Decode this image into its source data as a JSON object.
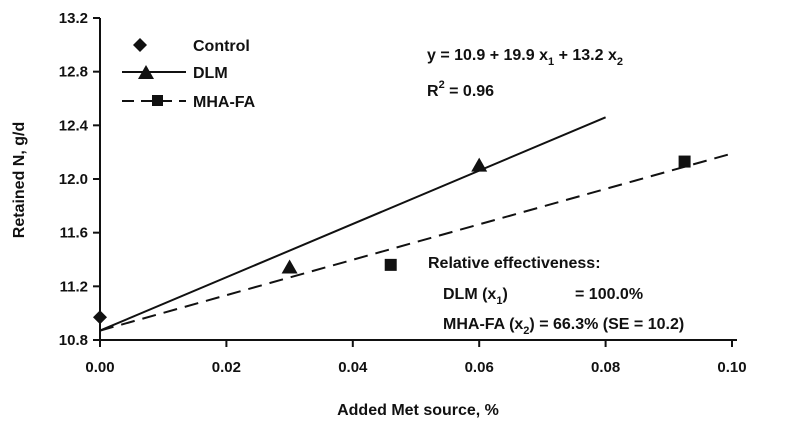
{
  "chart_data": {
    "type": "scatter",
    "xlabel": "Added Met source, %",
    "ylabel": "Retained N, g/d",
    "xlim": [
      0.0,
      0.1
    ],
    "ylim": [
      10.8,
      13.2
    ],
    "x_ticks": [
      "0.00",
      "0.02",
      "0.04",
      "0.06",
      "0.08",
      "0.10"
    ],
    "x_tick_values": [
      0.0,
      0.02,
      0.04,
      0.06,
      0.08,
      0.1
    ],
    "y_ticks": [
      "10.8",
      "11.2",
      "11.6",
      "12.0",
      "12.4",
      "12.8",
      "13.2"
    ],
    "y_tick_values": [
      10.8,
      11.2,
      11.6,
      12.0,
      12.4,
      12.8,
      13.2
    ],
    "grid": false,
    "legend_position": "top-left",
    "series": [
      {
        "name": "Control",
        "marker": "diamond",
        "line": "none",
        "points": [
          {
            "x": 0.0,
            "y": 10.97
          }
        ]
      },
      {
        "name": "DLM",
        "marker": "triangle",
        "line": "solid",
        "points": [
          {
            "x": 0.03,
            "y": 11.34
          },
          {
            "x": 0.06,
            "y": 12.1
          }
        ],
        "fit": {
          "x_start": 0.0,
          "y_start": 10.87,
          "x_end": 0.08,
          "y_end": 12.46
        }
      },
      {
        "name": "MHA-FA",
        "marker": "square",
        "line": "dashed",
        "points": [
          {
            "x": 0.046,
            "y": 11.36
          },
          {
            "x": 0.0925,
            "y": 12.13
          }
        ],
        "fit": {
          "x_start": 0.0,
          "y_start": 10.87,
          "x_end": 0.1,
          "y_end": 12.19
        }
      }
    ],
    "annotations": {
      "equation": {
        "y_eq": "y = 10.9 + 19.9 x",
        "sub1": "1",
        "plus": " + 13.2 x",
        "sub2": "2"
      },
      "r2": {
        "r": "R",
        "sup": "2",
        "rest": " = 0.96"
      },
      "relative": {
        "title": "Relative effectiveness:",
        "dlm_name": "DLM (x",
        "dlm_sub": "1",
        "dlm_close": ")",
        "dlm_value": "= 100.0%",
        "mha_name": "MHA-FA (x",
        "mha_sub": "2",
        "mha_close": ") = 66.3% (SE = 10.2)"
      }
    }
  }
}
